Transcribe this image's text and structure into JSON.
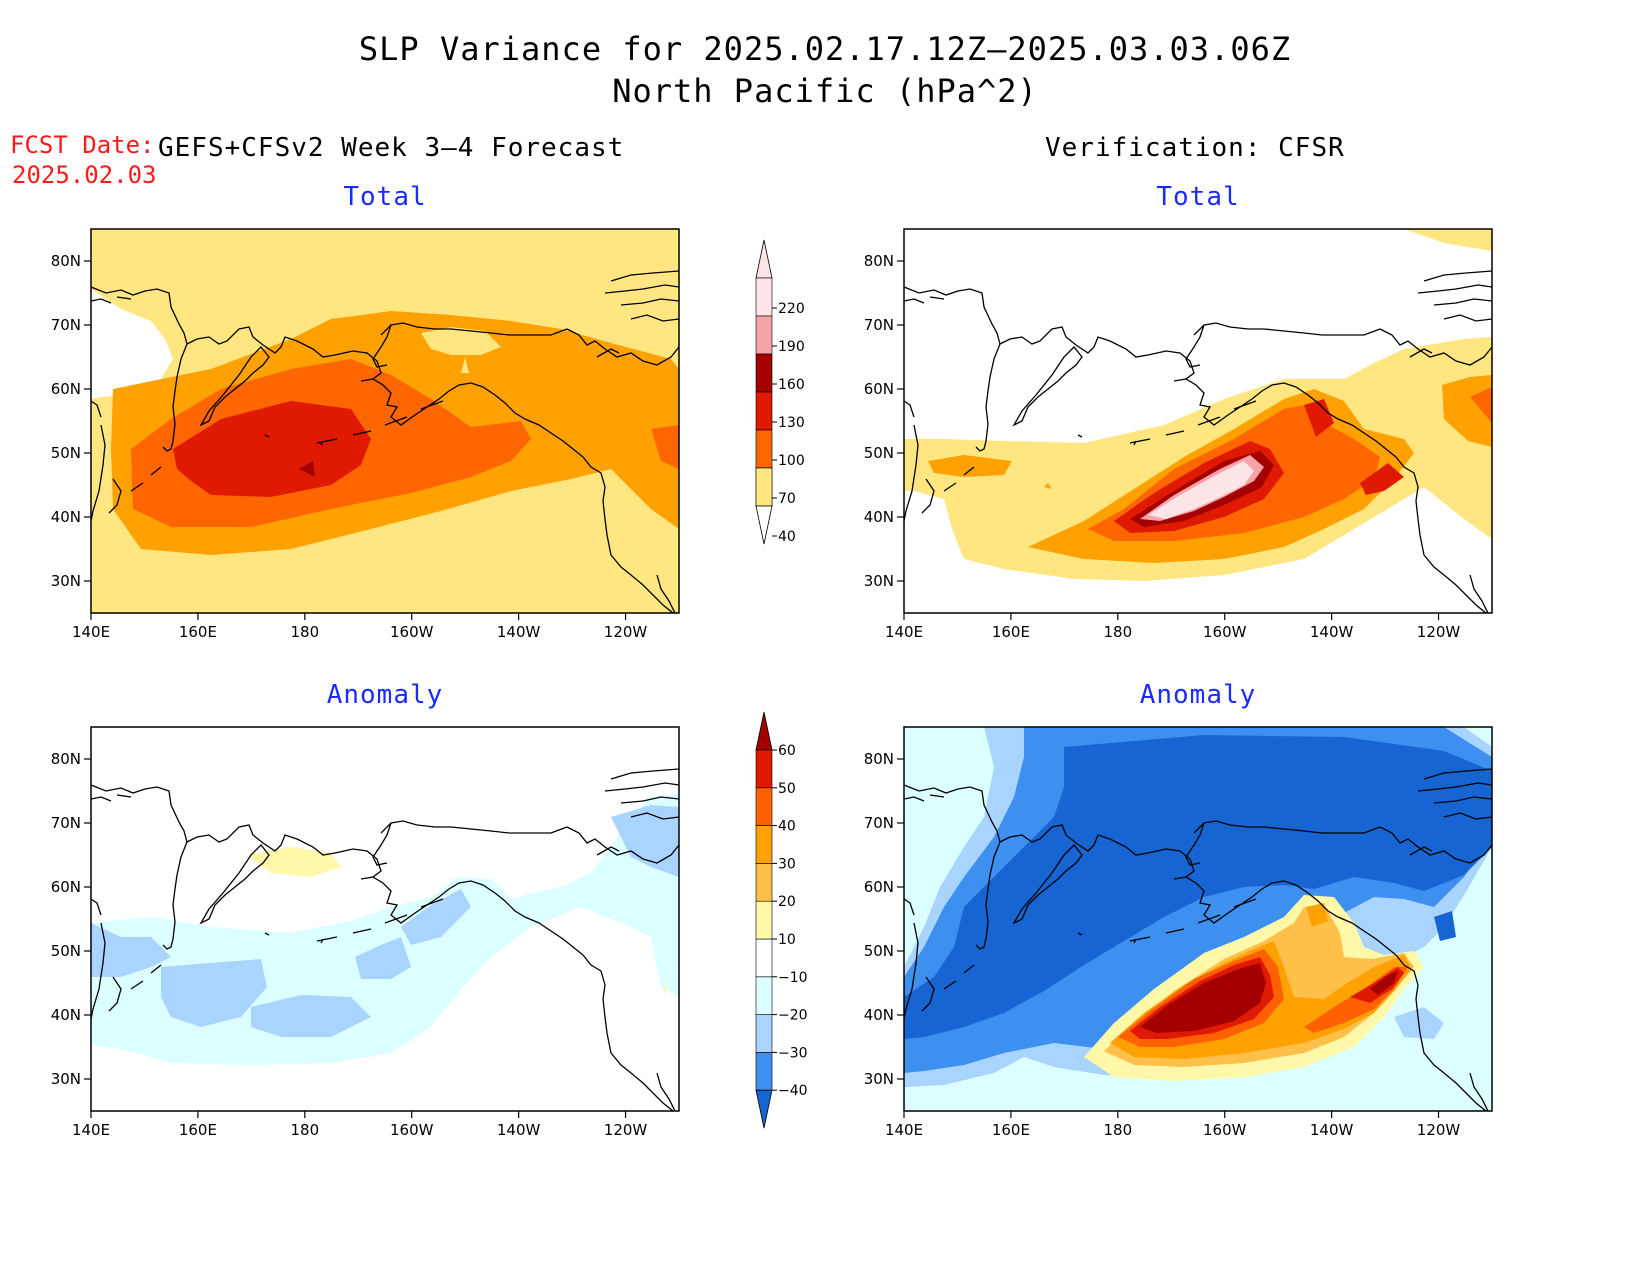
{
  "header": {
    "title_line1": "SLP Variance for 2025.02.17.12Z–2025.03.03.06Z",
    "title_line2": "North Pacific (hPa^2)",
    "fcst_label": "FCST Date:",
    "fcst_date": "2025.02.03",
    "left_heading": "GEFS+CFSv2 Week 3–4 Forecast",
    "right_heading": "Verification: CFSR"
  },
  "panels": {
    "forecast_total": {
      "title": "Total"
    },
    "verification_total": {
      "title": "Total"
    },
    "forecast_anomaly": {
      "title": "Anomaly"
    },
    "verification_anomaly": {
      "title": "Anomaly"
    }
  },
  "axes": {
    "lon_labels": [
      "140E",
      "160E",
      "180",
      "160W",
      "140W",
      "120W"
    ],
    "lat_labels": [
      "30N",
      "40N",
      "50N",
      "60N",
      "70N",
      "80N"
    ]
  },
  "colorbars": {
    "total": {
      "levels": [
        "40",
        "70",
        "100",
        "130",
        "160",
        "190",
        "220"
      ],
      "colors": [
        "#ffe680",
        "#ffa100",
        "#ff6600",
        "#e01a00",
        "#a50000",
        "#f5a3a8",
        "#fde4e6"
      ],
      "below_color": "#ffffff"
    },
    "anomaly": {
      "levels": [
        "-40",
        "-30",
        "-20",
        "-10",
        "10",
        "20",
        "30",
        "40",
        "50",
        "60"
      ],
      "colors": [
        "#1765d2",
        "#3d8ff0",
        "#a8d4ff",
        "#dcffff",
        "#ffffff",
        "#fff8a8",
        "#ffc04a",
        "#ffa100",
        "#ff6000",
        "#e01a00",
        "#a50000"
      ]
    }
  }
}
